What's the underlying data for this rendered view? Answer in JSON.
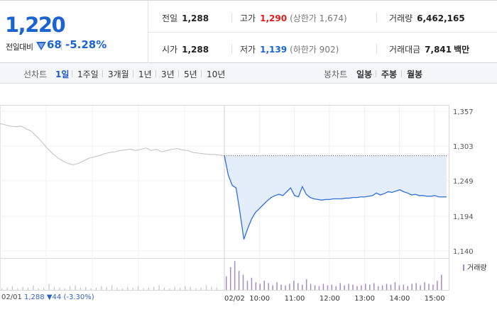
{
  "summary": {
    "current_price": "1,220",
    "change_label": "전일대비",
    "change_amount": "68",
    "change_rate": "-5.28%",
    "prev_close_label": "전일",
    "prev_close": "1,288",
    "open_label": "시가",
    "open": "1,288",
    "high_label": "고가",
    "high": "1,290",
    "upper_limit": "(상한가 1,674)",
    "low_label": "저가",
    "low": "1,139",
    "lower_limit": "(하한가 902)",
    "volume_label": "거래량",
    "volume": "6,462,165",
    "amount_label": "거래대금",
    "amount": "7,841",
    "amount_unit": "백만"
  },
  "tabs": {
    "line_title": "선차트",
    "line_periods": [
      "1일",
      "1주일",
      "3개월",
      "1년",
      "3년",
      "5년",
      "10년"
    ],
    "active_period": "1일",
    "candle_title": "봉차트",
    "candle_periods": [
      "일봉",
      "주봉",
      "월봉"
    ]
  },
  "colors": {
    "price_up": "#e11b1b",
    "price_down": "#1a63d2",
    "today_line": "#2f6fd6",
    "today_fill": "#e4eefb",
    "prev_line": "#bfbfbf",
    "volume": "#a48cc2"
  },
  "chart_data": {
    "type": "line",
    "y_ticks": [
      "1,357",
      "1,303",
      "1,249",
      "1,194",
      "1,140"
    ],
    "ylim": [
      1140,
      1357
    ],
    "reference_price": 1288,
    "x_ticks": [
      "02/02",
      "10:00",
      "11:00",
      "12:00",
      "13:00",
      "14:00",
      "15:00"
    ],
    "prev_day_date": "02/01",
    "volume_legend": "거래량",
    "series": [
      {
        "name": "02/01",
        "values": [
          1338,
          1336,
          1334,
          1333,
          1334,
          1330,
          1326,
          1318,
          1310,
          1300,
          1292,
          1285,
          1280,
          1276,
          1274,
          1276,
          1280,
          1284,
          1286,
          1288,
          1291,
          1293,
          1294,
          1296,
          1297,
          1298,
          1296,
          1298,
          1300,
          1296,
          1298,
          1294,
          1296,
          1298,
          1299,
          1297,
          1296,
          1293,
          1292,
          1291,
          1290,
          1290,
          1289,
          1288
        ]
      },
      {
        "name": "02/02",
        "values": [
          1288,
          1258,
          1242,
          1238,
          1200,
          1158,
          1175,
          1190,
          1200,
          1206,
          1212,
          1218,
          1223,
          1226,
          1228,
          1226,
          1232,
          1238,
          1226,
          1224,
          1240,
          1228,
          1223,
          1221,
          1220,
          1219,
          1220,
          1220,
          1221,
          1221,
          1221,
          1222,
          1222,
          1223,
          1223,
          1224,
          1224,
          1225,
          1226,
          1230,
          1227,
          1229,
          1232,
          1231,
          1233,
          1235,
          1232,
          1230,
          1227,
          1228,
          1226,
          1226,
          1225,
          1225,
          1226,
          1224,
          1224,
          1224
        ]
      }
    ],
    "volume": {
      "prev_day": [
        2,
        3,
        5,
        2,
        4,
        3,
        6,
        2,
        3,
        8,
        4,
        3,
        2,
        5,
        6,
        3,
        4,
        2,
        3,
        5,
        4,
        6,
        3,
        2,
        4,
        3,
        5,
        2,
        3,
        4,
        6,
        3,
        2,
        4,
        3,
        5,
        4,
        2,
        3,
        6,
        4,
        3
      ],
      "today": [
        18,
        30,
        38,
        25,
        20,
        12,
        16,
        10,
        8,
        12,
        9,
        6,
        10,
        7,
        6,
        8,
        12,
        9,
        7,
        14,
        8,
        6,
        5,
        8,
        6,
        7,
        5,
        9,
        6,
        8,
        7,
        5,
        6,
        8,
        7,
        9,
        5,
        6,
        8,
        7,
        10,
        6,
        7,
        5,
        8,
        9,
        6,
        10,
        8,
        7,
        12,
        20
      ]
    }
  },
  "footer": {
    "prev_date": "02/01",
    "prev_close": "1,288",
    "prev_change_symbol": "▼",
    "prev_change": "44",
    "prev_rate": "(-3.30%)"
  }
}
